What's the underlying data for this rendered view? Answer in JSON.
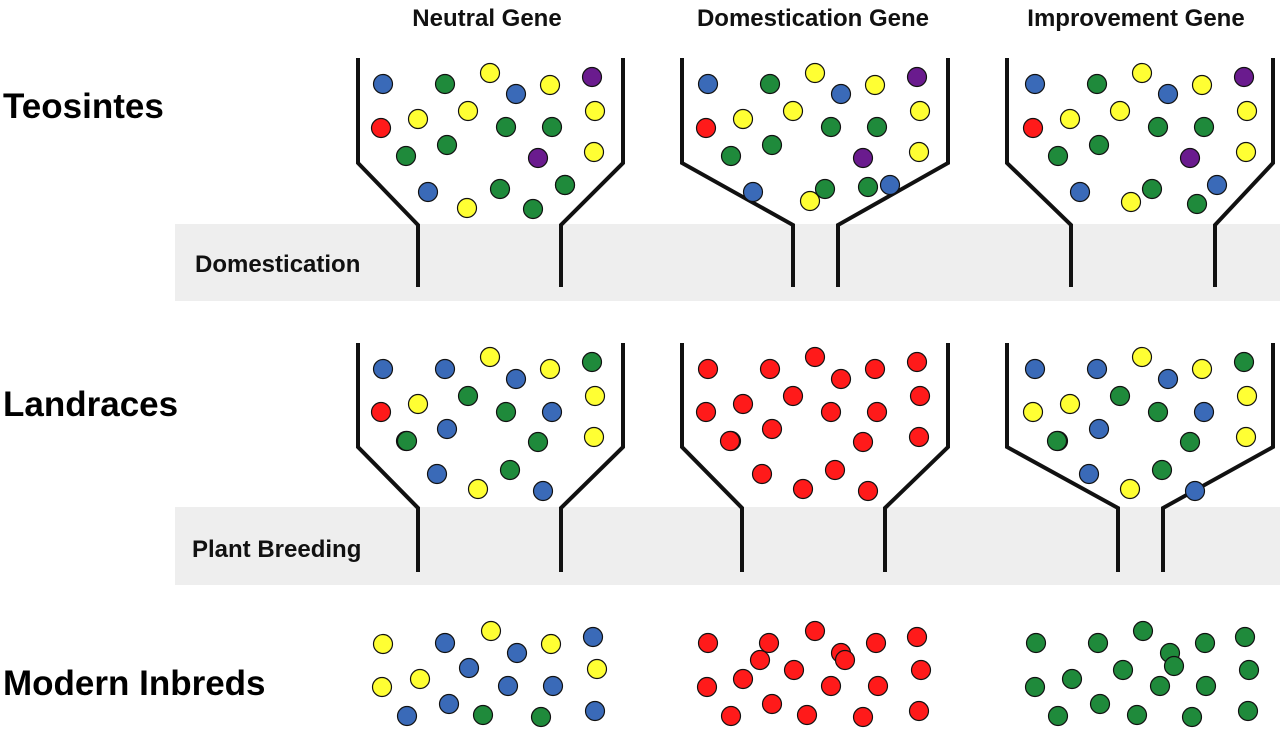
{
  "colors": {
    "blue": "#3a6ab8",
    "green": "#1f8a3b",
    "yellow": "#ffff33",
    "red": "#ff1a1a",
    "purple": "#6a1b8e",
    "band": "#eeeeee",
    "outline": "#111111"
  },
  "columns": [
    {
      "id": "neutral",
      "title": "Neutral Gene"
    },
    {
      "id": "domestication",
      "title": "Domestication Gene"
    },
    {
      "id": "improvement",
      "title": "Improvement Gene"
    }
  ],
  "rows": [
    {
      "id": "teosintes",
      "title": "Teosintes"
    },
    {
      "id": "landraces",
      "title": "Landraces"
    },
    {
      "id": "modern",
      "title": "Modern Inbreds"
    }
  ],
  "bottlenecks": [
    {
      "id": "domestication",
      "label": "Domestication"
    },
    {
      "id": "plant-breeding",
      "label": "Plant Breeding"
    }
  ],
  "allele_colors": {
    "teosintes": {
      "neutral": [
        "blue",
        "green",
        "yellow",
        "blue",
        "yellow",
        "purple",
        "yellow",
        "red",
        "yellow",
        "green",
        "green",
        "yellow",
        "green",
        "green",
        "purple",
        "yellow",
        "blue",
        "green",
        "blue",
        "green",
        "yellow",
        "green"
      ],
      "domestication": [
        "blue",
        "green",
        "yellow",
        "blue",
        "yellow",
        "purple",
        "yellow",
        "red",
        "yellow",
        "green",
        "green",
        "yellow",
        "green",
        "green",
        "purple",
        "yellow",
        "blue",
        "green",
        "blue",
        "green",
        "yellow"
      ],
      "improvement": [
        "blue",
        "green",
        "yellow",
        "blue",
        "yellow",
        "purple",
        "yellow",
        "red",
        "yellow",
        "green",
        "green",
        "yellow",
        "green",
        "green",
        "purple",
        "yellow",
        "blue",
        "green",
        "blue",
        "yellow",
        "green"
      ]
    },
    "landraces": {
      "neutral": [
        "blue",
        "blue",
        "yellow",
        "blue",
        "yellow",
        "green",
        "green",
        "red",
        "yellow",
        "green",
        "blue",
        "yellow",
        "green",
        "blue",
        "green",
        "yellow",
        "blue",
        "green",
        "blue",
        "yellow",
        "green"
      ],
      "domestication": [
        "red",
        "red",
        "red",
        "red",
        "red",
        "red",
        "red",
        "red",
        "red",
        "red",
        "red",
        "red",
        "red",
        "red",
        "red",
        "red",
        "red",
        "red",
        "red",
        "red",
        "red"
      ],
      "improvement": [
        "blue",
        "blue",
        "yellow",
        "blue",
        "yellow",
        "green",
        "green",
        "yellow",
        "yellow",
        "green",
        "blue",
        "yellow",
        "green",
        "blue",
        "green",
        "yellow",
        "blue",
        "green",
        "blue",
        "yellow",
        "green"
      ]
    },
    "modern": {
      "neutral": [
        "yellow",
        "blue",
        "yellow",
        "blue",
        "yellow",
        "blue",
        "blue",
        "yellow",
        "yellow",
        "blue",
        "blue",
        "yellow",
        "blue",
        "blue",
        "green",
        "green",
        "blue"
      ],
      "domestication": [
        "red",
        "red",
        "red",
        "red",
        "red",
        "red",
        "red",
        "red",
        "red",
        "red",
        "red",
        "red",
        "red",
        "red",
        "red",
        "red",
        "red",
        "red",
        "red"
      ],
      "improvement": [
        "green",
        "green",
        "green",
        "green",
        "green",
        "green",
        "green",
        "green",
        "green",
        "green",
        "green",
        "green",
        "green",
        "green",
        "green",
        "green",
        "green",
        "green"
      ]
    }
  }
}
